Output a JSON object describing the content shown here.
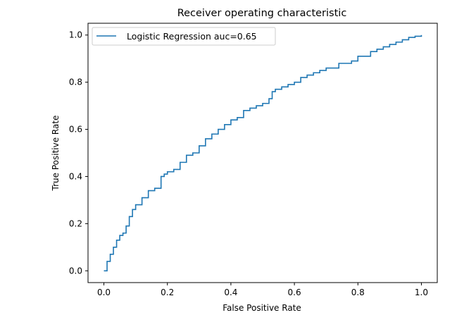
{
  "chart_data": {
    "type": "line",
    "title": "Receiver operating characteristic",
    "xlabel": "False Positive Rate",
    "ylabel": "True Positive Rate",
    "xlim": [
      -0.05,
      1.05
    ],
    "ylim": [
      -0.05,
      1.05
    ],
    "xticks": [
      "0.0",
      "0.2",
      "0.4",
      "0.6",
      "0.8",
      "1.0"
    ],
    "yticks": [
      "0.0",
      "0.2",
      "0.4",
      "0.6",
      "0.8",
      "1.0"
    ],
    "grid": false,
    "legend_position": "upper-left",
    "series": [
      {
        "name": "Logistic Regression auc=0.65",
        "color": "#1f77b4",
        "x": [
          0.0,
          0.01,
          0.02,
          0.03,
          0.04,
          0.05,
          0.06,
          0.07,
          0.08,
          0.09,
          0.1,
          0.12,
          0.14,
          0.16,
          0.18,
          0.19,
          0.2,
          0.22,
          0.24,
          0.26,
          0.28,
          0.3,
          0.32,
          0.34,
          0.36,
          0.38,
          0.4,
          0.42,
          0.44,
          0.46,
          0.48,
          0.5,
          0.52,
          0.53,
          0.54,
          0.56,
          0.58,
          0.6,
          0.62,
          0.64,
          0.66,
          0.68,
          0.7,
          0.72,
          0.74,
          0.76,
          0.78,
          0.8,
          0.82,
          0.84,
          0.86,
          0.88,
          0.9,
          0.92,
          0.94,
          0.96,
          0.98,
          1.0
        ],
        "y": [
          0.0,
          0.04,
          0.07,
          0.1,
          0.13,
          0.15,
          0.16,
          0.19,
          0.23,
          0.26,
          0.28,
          0.31,
          0.34,
          0.35,
          0.4,
          0.41,
          0.42,
          0.43,
          0.46,
          0.49,
          0.5,
          0.53,
          0.56,
          0.58,
          0.6,
          0.62,
          0.64,
          0.65,
          0.68,
          0.69,
          0.7,
          0.71,
          0.73,
          0.76,
          0.77,
          0.78,
          0.79,
          0.8,
          0.82,
          0.83,
          0.84,
          0.85,
          0.86,
          0.86,
          0.88,
          0.88,
          0.89,
          0.91,
          0.91,
          0.93,
          0.94,
          0.95,
          0.96,
          0.97,
          0.98,
          0.99,
          0.995,
          1.0
        ]
      }
    ]
  }
}
